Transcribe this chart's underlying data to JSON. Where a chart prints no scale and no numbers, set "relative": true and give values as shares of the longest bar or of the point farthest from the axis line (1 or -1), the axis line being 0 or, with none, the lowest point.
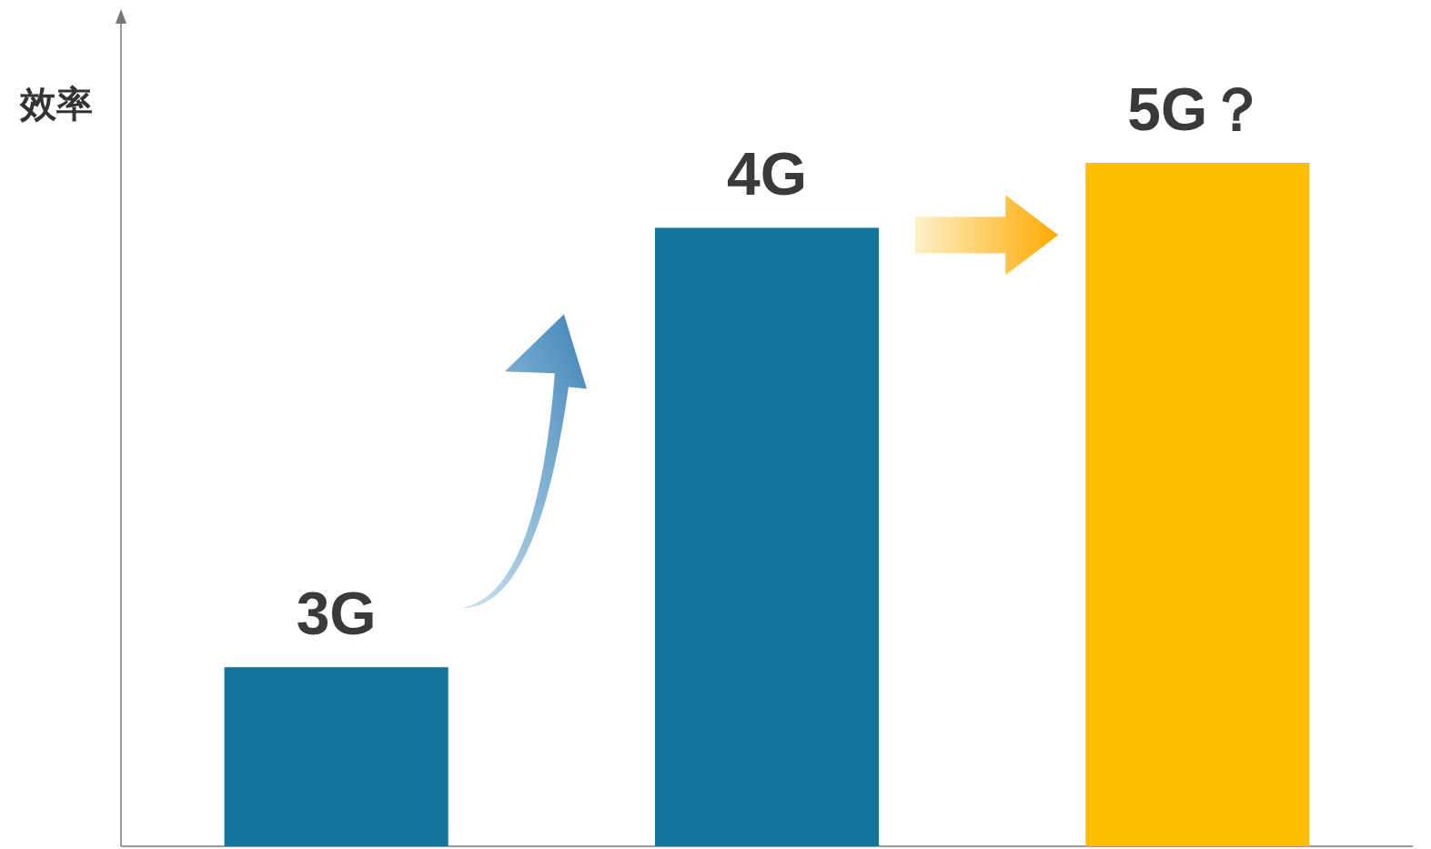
{
  "chart_data": {
    "type": "bar",
    "relative": true,
    "ylabel": "效率",
    "categories": [
      "3G",
      "4G",
      "5G？"
    ],
    "values": [
      0.262,
      0.905,
      1
    ],
    "colors": [
      "#13759c",
      "#13759c",
      "#fdbe00"
    ]
  }
}
